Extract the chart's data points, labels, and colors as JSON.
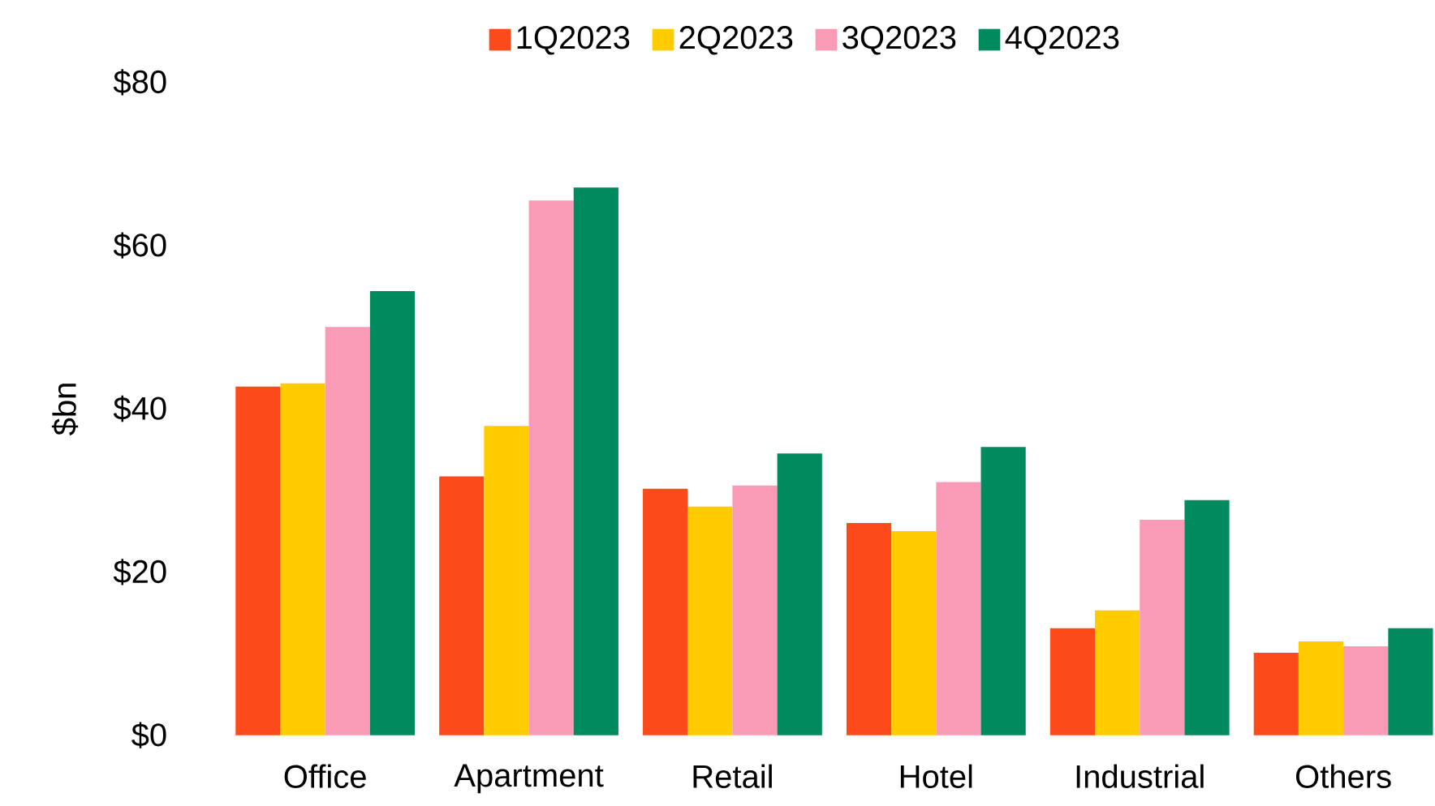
{
  "chart_data": {
    "type": "bar",
    "ylabel": "$bn",
    "categories": [
      "Office",
      "Apartment",
      "Retail",
      "Hotel",
      "Industrial",
      "Others"
    ],
    "series": [
      {
        "name": "1Q2023",
        "color": "#fc4a1a",
        "values": [
          42.7,
          31.7,
          30.2,
          26.0,
          13.1,
          10.1
        ]
      },
      {
        "name": "2Q2023",
        "color": "#ffcc00",
        "values": [
          43.1,
          37.9,
          28.0,
          25.0,
          15.3,
          11.5
        ]
      },
      {
        "name": "3Q2023",
        "color": "#f99bb5",
        "values": [
          50.0,
          65.5,
          30.6,
          31.0,
          26.4,
          10.9
        ]
      },
      {
        "name": "4Q2023",
        "color": "#008a5e",
        "values": [
          54.4,
          67.1,
          34.5,
          35.3,
          28.8,
          13.1
        ]
      }
    ],
    "ylim": [
      0,
      80
    ],
    "yticks": [
      {
        "value": 0,
        "label": "$0"
      },
      {
        "value": 20,
        "label": "$20"
      },
      {
        "value": 40,
        "label": "$40"
      },
      {
        "value": 60,
        "label": "$60"
      },
      {
        "value": 80,
        "label": "$80"
      }
    ],
    "grid": false,
    "legend": "top"
  }
}
